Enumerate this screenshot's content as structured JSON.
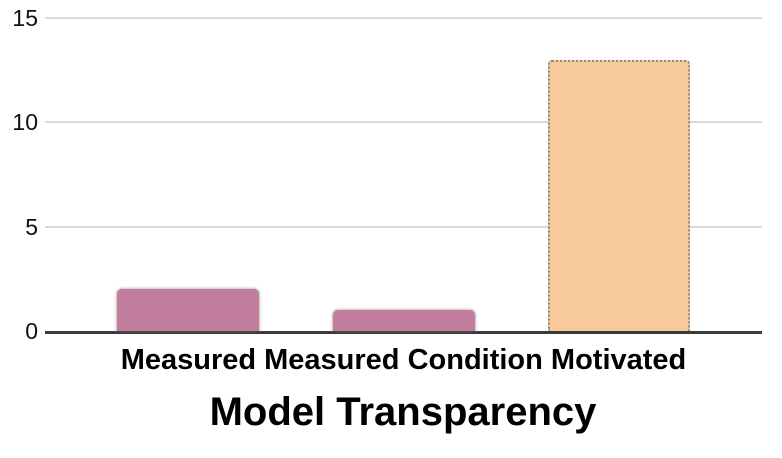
{
  "chart_data": {
    "type": "bar",
    "title": "Model Transparency",
    "categories": [
      "Measured",
      "Measured Condition",
      "Motivated"
    ],
    "values": [
      2,
      1,
      13
    ],
    "bar_colors": [
      "#c27d9e",
      "#c27d9e",
      "#f8ca9a"
    ],
    "bar_styles": [
      "solid-shadow",
      "solid-shadow",
      "dotted"
    ],
    "xlabel": "",
    "ylabel": "",
    "ylim": [
      0,
      15
    ],
    "yticks": [
      0,
      5,
      10,
      15
    ],
    "grid": "horizontal",
    "legend": "none"
  },
  "colors": {
    "pink_bar": "#c27d9e",
    "orange_bar": "#f8ca9a",
    "gridline": "#d9d9d9",
    "axis_line": "#3b3b3b",
    "dotted_border": "#8a8a8a",
    "text": "#000000"
  }
}
